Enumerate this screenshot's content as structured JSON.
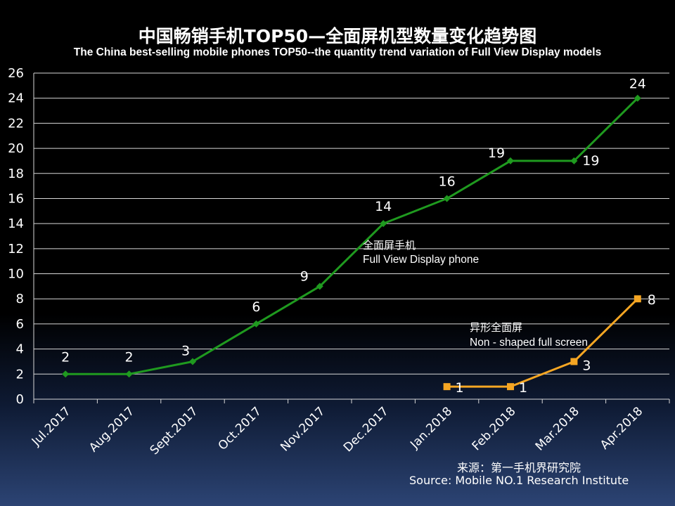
{
  "chart_data": {
    "type": "line",
    "title": "中国畅销手机TOP50—全面屏机型数量变化趋势图",
    "subtitle": "The China best-selling mobile phones TOP50--the quantity trend variation of Full View Display models",
    "categories": [
      "Jul.2017",
      "Aug.2017",
      "Sept.2017",
      "Oct.2017",
      "Nov.2017",
      "Dec.2017",
      "Jan.2018",
      "Feb.2018",
      "Mar.2018",
      "Apr.2018"
    ],
    "ylim": [
      0,
      26
    ],
    "yticks": [
      "0",
      "2",
      "4",
      "6",
      "8",
      "10",
      "12",
      "14",
      "16",
      "18",
      "20",
      "22",
      "24",
      "26"
    ],
    "grid": true,
    "series": [
      {
        "name": "全面屏手机",
        "name_en": "Full View Display phone",
        "color": "#1f9a1f",
        "marker": "diamond",
        "values": [
          2,
          2,
          3,
          6,
          9,
          14,
          16,
          19,
          19,
          24
        ]
      },
      {
        "name": "异形全面屏",
        "name_en": "Non - shaped full screen",
        "color": "#f5a623",
        "marker": "square",
        "values": [
          null,
          null,
          null,
          null,
          null,
          null,
          1,
          1,
          3,
          8
        ]
      }
    ]
  },
  "source": {
    "cn": "来源：第一手机界研究院",
    "en": "Source: Mobile NO.1 Research Institute"
  }
}
